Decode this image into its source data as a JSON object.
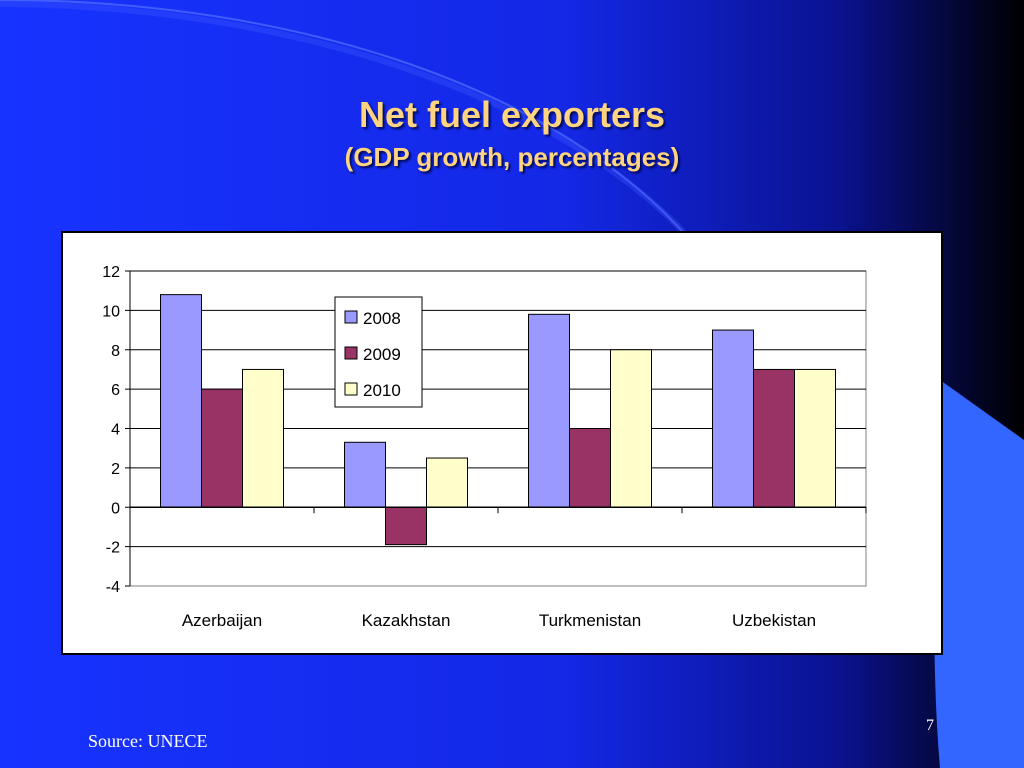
{
  "slide": {
    "title": "Net fuel exporters",
    "subtitle": "(GDP growth, percentages)",
    "source": "Source: UNECE",
    "page_number": "7"
  },
  "colors": {
    "background": "#1733ff",
    "title": "#ffd480",
    "series_2008": "#9999ff",
    "series_2009": "#993366",
    "series_2010": "#ffffcc"
  },
  "chart_data": {
    "type": "bar",
    "categories": [
      "Azerbaijan",
      "Kazakhstan",
      "Turkmenistan",
      "Uzbekistan"
    ],
    "series": [
      {
        "name": "2008",
        "values": [
          10.8,
          3.3,
          9.8,
          9.0
        ]
      },
      {
        "name": "2009",
        "values": [
          6.0,
          -1.9,
          4.0,
          7.0
        ]
      },
      {
        "name": "2010",
        "values": [
          7.0,
          2.5,
          8.0,
          7.0
        ]
      }
    ],
    "title": "",
    "xlabel": "",
    "ylabel": "",
    "ylim": [
      -4,
      12
    ],
    "yticks": [
      "12",
      "10",
      "8",
      "6",
      "4",
      "2",
      "0",
      "-2",
      "-4"
    ],
    "grid": true,
    "legend_position": "top-center"
  }
}
